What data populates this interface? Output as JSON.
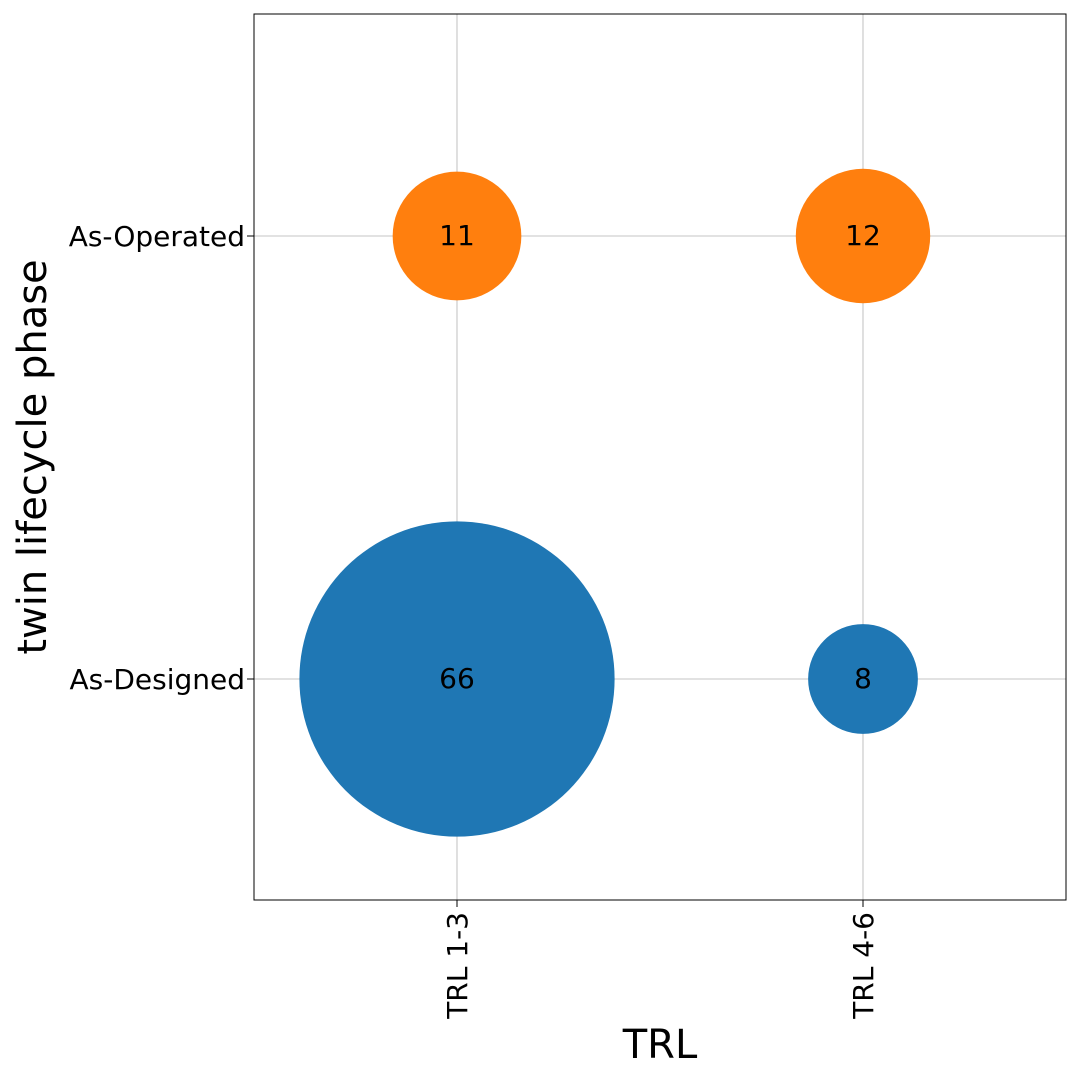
{
  "chart_data": {
    "type": "scatter",
    "subtype": "bubble",
    "xlabel": "TRL",
    "ylabel": "twin lifecycle phase",
    "x_categories": [
      "TRL 1-3",
      "TRL 4-6"
    ],
    "y_categories": [
      "As-Designed",
      "As-Operated"
    ],
    "grid": true,
    "points": [
      {
        "x": "TRL 1-3",
        "y": "As-Designed",
        "value": 66,
        "color": "#1f77b4"
      },
      {
        "x": "TRL 4-6",
        "y": "As-Designed",
        "value": 8,
        "color": "#1f77b4"
      },
      {
        "x": "TRL 1-3",
        "y": "As-Operated",
        "value": 11,
        "color": "#ff7f0e"
      },
      {
        "x": "TRL 4-6",
        "y": "As-Operated",
        "value": 12,
        "color": "#ff7f0e"
      }
    ]
  }
}
